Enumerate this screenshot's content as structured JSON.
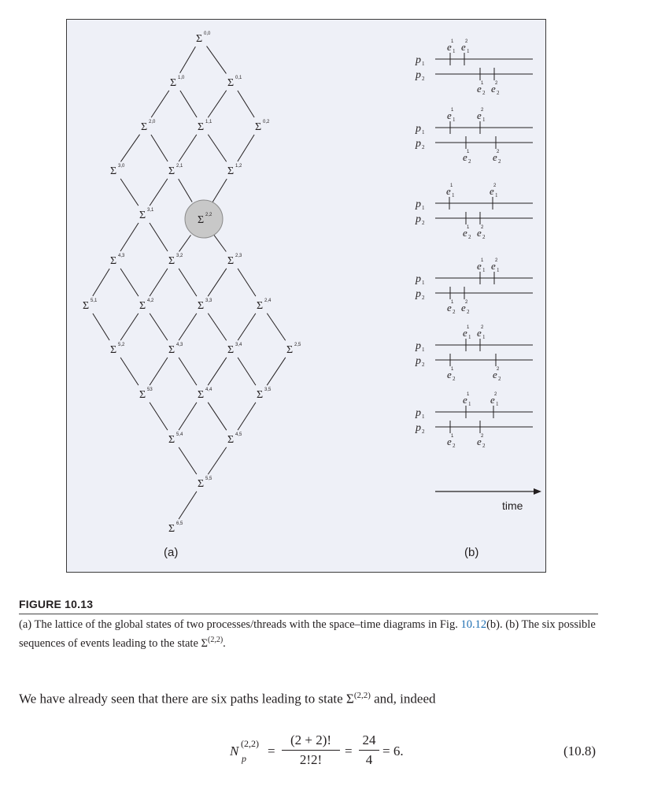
{
  "figure": {
    "panel_a_label": "(a)",
    "panel_b_label": "(b)",
    "time_label": "time",
    "sigma_symbol": "Σ",
    "lattice_nodes": [
      "0,0",
      "1,0",
      "0,1",
      "2,0",
      "1,1",
      "0,2",
      "3,0",
      "2,1",
      "1,2",
      "3,1",
      "2,2",
      "4,3",
      "3,2",
      "2,3",
      "5,1",
      "4,2",
      "3,3",
      "2,4",
      "5,2",
      "4,3",
      "3,4",
      "2,5",
      "53",
      "4,4",
      "3,5",
      "5,4",
      "4,5",
      "5,5",
      "6,5"
    ],
    "highlighted_node": "2,2",
    "process_labels": [
      "p1",
      "p2"
    ],
    "event_labels": [
      "e1^1",
      "e1^2",
      "e2^1",
      "e2^2"
    ],
    "sequence_count": 6
  },
  "caption": {
    "label": "FIGURE 10.13",
    "text_1": "(a) The lattice of the global states of two processes/threads with the space–time diagrams in Fig. ",
    "ref": "10.12",
    "text_2": "(b). (b) The six possible sequences of events leading to the state ",
    "state_sym": "Σ",
    "state_sup": "(2,2)",
    "text_end": "."
  },
  "paragraph": {
    "text_1": "We have already seen that there are six paths leading to state ",
    "state_sym": "Σ",
    "state_sup": "(2,2)",
    "text_2": " and, indeed"
  },
  "equation": {
    "lhs_N": "N",
    "lhs_sup": "(2,2)",
    "lhs_sub": "p",
    "eq1": "=",
    "frac1_num": "(2 + 2)!",
    "frac1_den": "2!2!",
    "eq2": "=",
    "frac2_num": "24",
    "frac2_den": "4",
    "result": "= 6.",
    "number": "(10.8)"
  }
}
